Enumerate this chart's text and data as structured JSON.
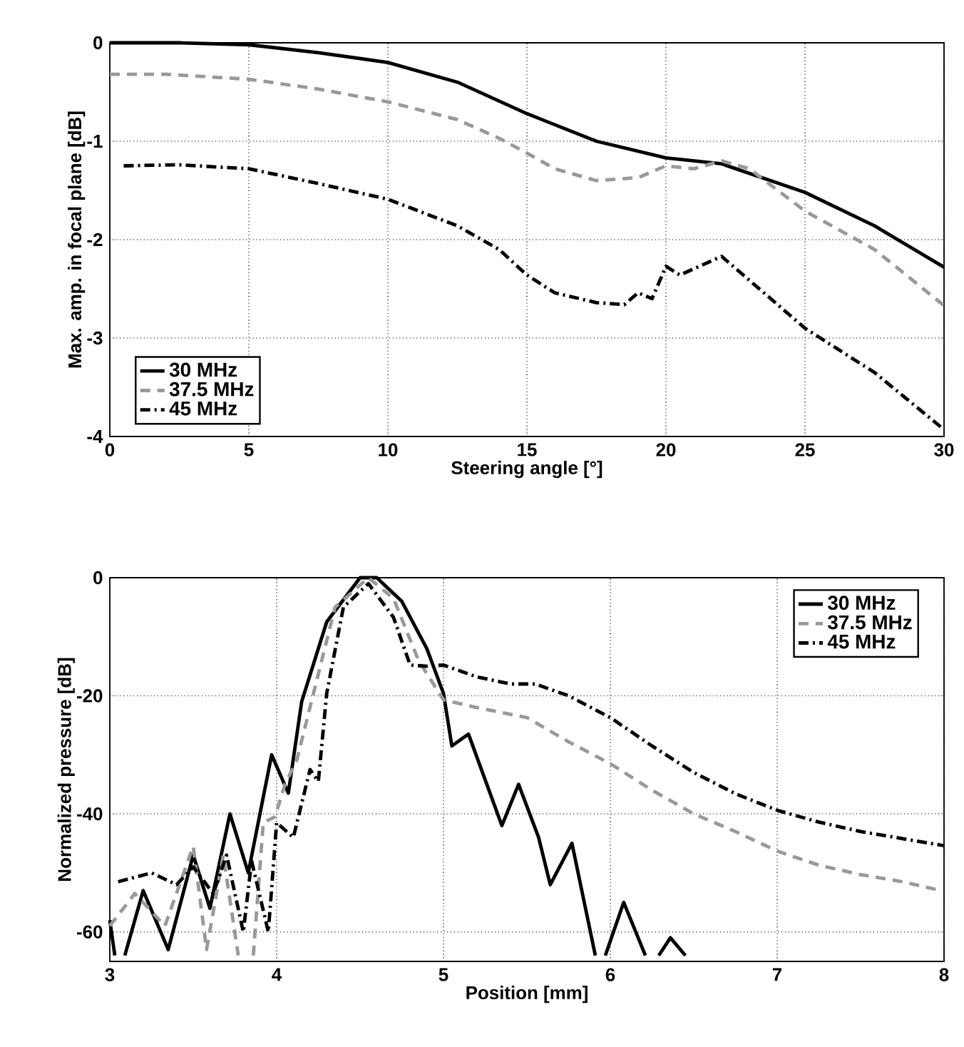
{
  "chart_data": [
    {
      "type": "line",
      "xlabel": "Steering angle [°]",
      "ylabel": "Max. amp. in focal plane [dB]",
      "xlim": [
        0,
        30
      ],
      "ylim": [
        -4,
        0
      ],
      "xticks": [
        0,
        5,
        10,
        15,
        20,
        25,
        30
      ],
      "yticks": [
        -4,
        -3,
        -2,
        -1,
        0
      ],
      "grid": true,
      "legend": "bottom left",
      "series": [
        {
          "name": "30 MHz",
          "color": "#000000",
          "line_style": "solid",
          "x": [
            0,
            2.5,
            5,
            7.5,
            10,
            12.5,
            15,
            17.5,
            20,
            22,
            25,
            27.5,
            30
          ],
          "values": [
            0,
            0,
            -0.02,
            -0.1,
            -0.2,
            -0.4,
            -0.72,
            -1.0,
            -1.17,
            -1.23,
            -1.52,
            -1.86,
            -2.28
          ]
        },
        {
          "name": "37.5 MHz",
          "color": "#999999",
          "line_style": "dashed",
          "x": [
            0,
            2,
            5,
            7.5,
            10,
            12.5,
            14,
            15,
            16,
            17.5,
            19,
            20,
            21,
            22,
            23,
            25,
            27.5,
            30
          ],
          "values": [
            -0.32,
            -0.32,
            -0.37,
            -0.47,
            -0.6,
            -0.78,
            -0.97,
            -1.12,
            -1.28,
            -1.4,
            -1.37,
            -1.25,
            -1.28,
            -1.2,
            -1.28,
            -1.71,
            -2.1,
            -2.67
          ]
        },
        {
          "name": "45 MHz",
          "color": "#000000",
          "line_style": "dashdot",
          "x": [
            0.5,
            2.5,
            5,
            7.5,
            10,
            12.5,
            14,
            15,
            16,
            17.5,
            18.5,
            19,
            19.5,
            20,
            20.5,
            22,
            25,
            27.5,
            30
          ],
          "values": [
            -1.25,
            -1.24,
            -1.28,
            -1.43,
            -1.59,
            -1.86,
            -2.1,
            -2.36,
            -2.54,
            -2.64,
            -2.66,
            -2.54,
            -2.6,
            -2.27,
            -2.36,
            -2.17,
            -2.9,
            -3.35,
            -3.93
          ]
        }
      ]
    },
    {
      "type": "line",
      "xlabel": "Position [mm]",
      "ylabel": "Normalized pressure [dB]",
      "xlim": [
        3,
        8
      ],
      "ylim": [
        -65,
        0
      ],
      "xticks": [
        3,
        4,
        5,
        6,
        7,
        8
      ],
      "yticks": [
        -60,
        -40,
        -20,
        0
      ],
      "grid": true,
      "legend": "top right",
      "series": [
        {
          "name": "30 MHz",
          "color": "#000000",
          "line_style": "solid",
          "x": [
            3.0,
            3.03,
            3.06,
            3.09,
            3.2,
            3.35,
            3.5,
            3.6,
            3.72,
            3.83,
            3.97,
            4.07,
            4.15,
            4.3,
            4.5,
            4.6,
            4.75,
            4.9,
            5.0,
            5.05,
            5.15,
            5.35,
            5.45,
            5.57,
            5.64,
            5.77,
            5.91,
            5.94,
            5.97,
            6.08,
            6.21,
            6.25,
            6.29,
            6.36,
            6.45
          ],
          "values": [
            -58,
            -64,
            null,
            -64,
            -53,
            -63,
            -47,
            -56,
            -40,
            -50,
            -30,
            -36.5,
            -21,
            -7.5,
            0,
            0,
            -4,
            -12,
            -19.6,
            -28.5,
            -26.5,
            -42,
            -35,
            -44,
            -52,
            -45,
            -64,
            null,
            -64,
            -55,
            -64,
            null,
            -64,
            -61,
            -64
          ]
        },
        {
          "name": "37.5 MHz",
          "color": "#999999",
          "line_style": "dashed",
          "x": [
            3.0,
            3.15,
            3.33,
            3.5,
            3.58,
            3.68,
            3.77,
            3.82,
            3.86,
            3.92,
            3.99,
            4.05,
            4.12,
            4.35,
            4.55,
            4.7,
            4.85,
            5.0,
            5.2,
            5.5,
            5.75,
            6.0,
            6.25,
            6.5,
            6.75,
            7.0,
            7.25,
            7.5,
            7.75,
            7.95
          ],
          "values": [
            -59,
            -53.5,
            -59,
            -45.5,
            -63,
            -47,
            -64,
            null,
            -64,
            -41.5,
            -40.5,
            -35,
            -31,
            -5,
            0,
            -3.5,
            -14,
            -20.7,
            -22,
            -23.7,
            -27.8,
            -31.5,
            -36,
            -40,
            -43,
            -46.3,
            -48.7,
            -50.3,
            -51.5,
            -52.8
          ]
        },
        {
          "name": "45 MHz",
          "color": "#000000",
          "line_style": "dashdot",
          "x": [
            3.05,
            3.25,
            3.4,
            3.5,
            3.62,
            3.7,
            3.8,
            3.85,
            3.95,
            4.0,
            4.1,
            4.2,
            4.25,
            4.3,
            4.4,
            4.55,
            4.7,
            4.8,
            4.9,
            5.0,
            5.2,
            5.4,
            5.55,
            5.75,
            6.0,
            6.25,
            6.5,
            6.75,
            7.0,
            7.25,
            7.5,
            7.75,
            8.0
          ],
          "values": [
            -51.5,
            -50,
            -52,
            -49,
            -53.5,
            -47,
            -60,
            -48,
            -60,
            -41.5,
            -44,
            -32.5,
            -34.5,
            -19.6,
            -5,
            -1,
            -6.7,
            -14.8,
            -15,
            -14.8,
            -16.8,
            -18,
            -18,
            -20,
            -23.7,
            -28.5,
            -33,
            -36.6,
            -39.4,
            -41.4,
            -43,
            -44.2,
            -45.4
          ]
        }
      ]
    }
  ]
}
